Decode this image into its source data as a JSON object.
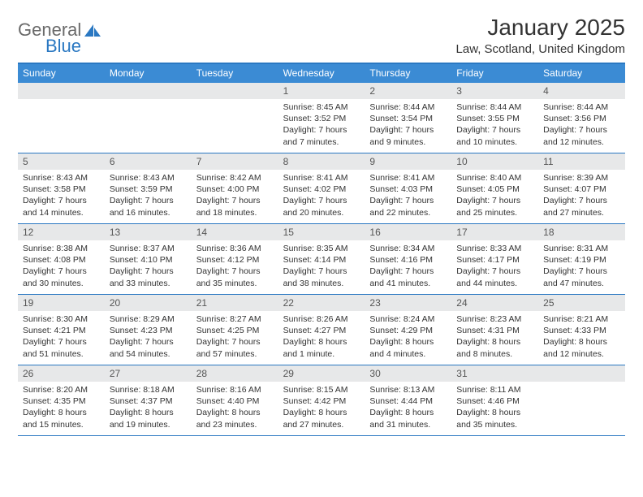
{
  "logo": {
    "text1": "General",
    "text2": "Blue"
  },
  "title": "January 2025",
  "location": "Law, Scotland, United Kingdom",
  "colors": {
    "header_bg": "#3b8bd4",
    "rule": "#2a78c2",
    "daynum_bg": "#e7e8e9",
    "text": "#333333",
    "logo_gray": "#6a6a6a",
    "logo_blue": "#2a78c2"
  },
  "days_of_week": [
    "Sunday",
    "Monday",
    "Tuesday",
    "Wednesday",
    "Thursday",
    "Friday",
    "Saturday"
  ],
  "weeks": [
    [
      {
        "n": "",
        "empty": true
      },
      {
        "n": "",
        "empty": true
      },
      {
        "n": "",
        "empty": true
      },
      {
        "n": "1",
        "sr": "Sunrise: 8:45 AM",
        "ss": "Sunset: 3:52 PM",
        "d1": "Daylight: 7 hours",
        "d2": "and 7 minutes."
      },
      {
        "n": "2",
        "sr": "Sunrise: 8:44 AM",
        "ss": "Sunset: 3:54 PM",
        "d1": "Daylight: 7 hours",
        "d2": "and 9 minutes."
      },
      {
        "n": "3",
        "sr": "Sunrise: 8:44 AM",
        "ss": "Sunset: 3:55 PM",
        "d1": "Daylight: 7 hours",
        "d2": "and 10 minutes."
      },
      {
        "n": "4",
        "sr": "Sunrise: 8:44 AM",
        "ss": "Sunset: 3:56 PM",
        "d1": "Daylight: 7 hours",
        "d2": "and 12 minutes."
      }
    ],
    [
      {
        "n": "5",
        "sr": "Sunrise: 8:43 AM",
        "ss": "Sunset: 3:58 PM",
        "d1": "Daylight: 7 hours",
        "d2": "and 14 minutes."
      },
      {
        "n": "6",
        "sr": "Sunrise: 8:43 AM",
        "ss": "Sunset: 3:59 PM",
        "d1": "Daylight: 7 hours",
        "d2": "and 16 minutes."
      },
      {
        "n": "7",
        "sr": "Sunrise: 8:42 AM",
        "ss": "Sunset: 4:00 PM",
        "d1": "Daylight: 7 hours",
        "d2": "and 18 minutes."
      },
      {
        "n": "8",
        "sr": "Sunrise: 8:41 AM",
        "ss": "Sunset: 4:02 PM",
        "d1": "Daylight: 7 hours",
        "d2": "and 20 minutes."
      },
      {
        "n": "9",
        "sr": "Sunrise: 8:41 AM",
        "ss": "Sunset: 4:03 PM",
        "d1": "Daylight: 7 hours",
        "d2": "and 22 minutes."
      },
      {
        "n": "10",
        "sr": "Sunrise: 8:40 AM",
        "ss": "Sunset: 4:05 PM",
        "d1": "Daylight: 7 hours",
        "d2": "and 25 minutes."
      },
      {
        "n": "11",
        "sr": "Sunrise: 8:39 AM",
        "ss": "Sunset: 4:07 PM",
        "d1": "Daylight: 7 hours",
        "d2": "and 27 minutes."
      }
    ],
    [
      {
        "n": "12",
        "sr": "Sunrise: 8:38 AM",
        "ss": "Sunset: 4:08 PM",
        "d1": "Daylight: 7 hours",
        "d2": "and 30 minutes."
      },
      {
        "n": "13",
        "sr": "Sunrise: 8:37 AM",
        "ss": "Sunset: 4:10 PM",
        "d1": "Daylight: 7 hours",
        "d2": "and 33 minutes."
      },
      {
        "n": "14",
        "sr": "Sunrise: 8:36 AM",
        "ss": "Sunset: 4:12 PM",
        "d1": "Daylight: 7 hours",
        "d2": "and 35 minutes."
      },
      {
        "n": "15",
        "sr": "Sunrise: 8:35 AM",
        "ss": "Sunset: 4:14 PM",
        "d1": "Daylight: 7 hours",
        "d2": "and 38 minutes."
      },
      {
        "n": "16",
        "sr": "Sunrise: 8:34 AM",
        "ss": "Sunset: 4:16 PM",
        "d1": "Daylight: 7 hours",
        "d2": "and 41 minutes."
      },
      {
        "n": "17",
        "sr": "Sunrise: 8:33 AM",
        "ss": "Sunset: 4:17 PM",
        "d1": "Daylight: 7 hours",
        "d2": "and 44 minutes."
      },
      {
        "n": "18",
        "sr": "Sunrise: 8:31 AM",
        "ss": "Sunset: 4:19 PM",
        "d1": "Daylight: 7 hours",
        "d2": "and 47 minutes."
      }
    ],
    [
      {
        "n": "19",
        "sr": "Sunrise: 8:30 AM",
        "ss": "Sunset: 4:21 PM",
        "d1": "Daylight: 7 hours",
        "d2": "and 51 minutes."
      },
      {
        "n": "20",
        "sr": "Sunrise: 8:29 AM",
        "ss": "Sunset: 4:23 PM",
        "d1": "Daylight: 7 hours",
        "d2": "and 54 minutes."
      },
      {
        "n": "21",
        "sr": "Sunrise: 8:27 AM",
        "ss": "Sunset: 4:25 PM",
        "d1": "Daylight: 7 hours",
        "d2": "and 57 minutes."
      },
      {
        "n": "22",
        "sr": "Sunrise: 8:26 AM",
        "ss": "Sunset: 4:27 PM",
        "d1": "Daylight: 8 hours",
        "d2": "and 1 minute."
      },
      {
        "n": "23",
        "sr": "Sunrise: 8:24 AM",
        "ss": "Sunset: 4:29 PM",
        "d1": "Daylight: 8 hours",
        "d2": "and 4 minutes."
      },
      {
        "n": "24",
        "sr": "Sunrise: 8:23 AM",
        "ss": "Sunset: 4:31 PM",
        "d1": "Daylight: 8 hours",
        "d2": "and 8 minutes."
      },
      {
        "n": "25",
        "sr": "Sunrise: 8:21 AM",
        "ss": "Sunset: 4:33 PM",
        "d1": "Daylight: 8 hours",
        "d2": "and 12 minutes."
      }
    ],
    [
      {
        "n": "26",
        "sr": "Sunrise: 8:20 AM",
        "ss": "Sunset: 4:35 PM",
        "d1": "Daylight: 8 hours",
        "d2": "and 15 minutes."
      },
      {
        "n": "27",
        "sr": "Sunrise: 8:18 AM",
        "ss": "Sunset: 4:37 PM",
        "d1": "Daylight: 8 hours",
        "d2": "and 19 minutes."
      },
      {
        "n": "28",
        "sr": "Sunrise: 8:16 AM",
        "ss": "Sunset: 4:40 PM",
        "d1": "Daylight: 8 hours",
        "d2": "and 23 minutes."
      },
      {
        "n": "29",
        "sr": "Sunrise: 8:15 AM",
        "ss": "Sunset: 4:42 PM",
        "d1": "Daylight: 8 hours",
        "d2": "and 27 minutes."
      },
      {
        "n": "30",
        "sr": "Sunrise: 8:13 AM",
        "ss": "Sunset: 4:44 PM",
        "d1": "Daylight: 8 hours",
        "d2": "and 31 minutes."
      },
      {
        "n": "31",
        "sr": "Sunrise: 8:11 AM",
        "ss": "Sunset: 4:46 PM",
        "d1": "Daylight: 8 hours",
        "d2": "and 35 minutes."
      },
      {
        "n": "",
        "empty": true
      }
    ]
  ]
}
